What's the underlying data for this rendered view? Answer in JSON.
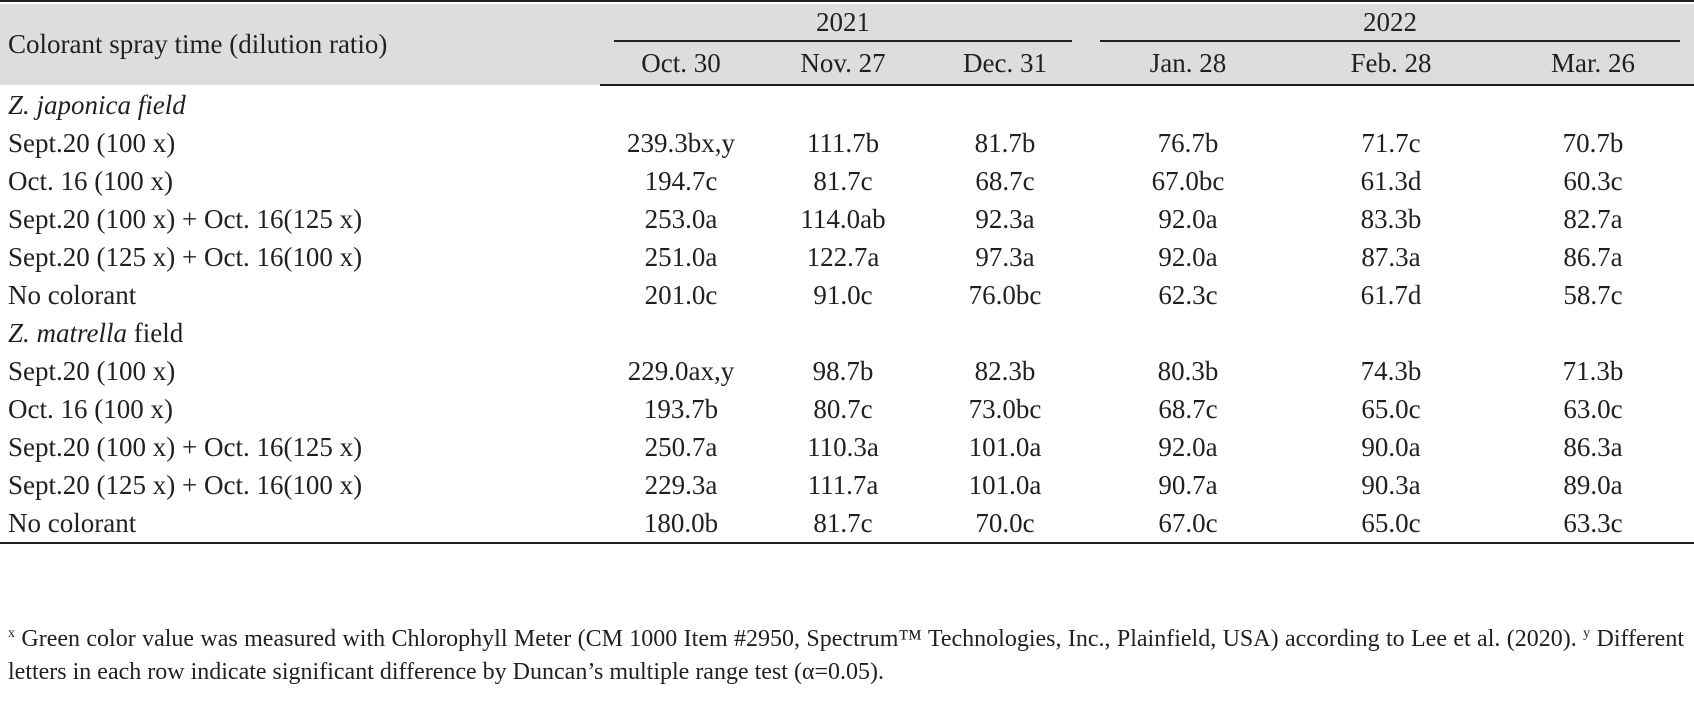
{
  "table": {
    "row_header": "Colorant spray time (dilution ratio)",
    "years": [
      {
        "label": "2021",
        "span": 3
      },
      {
        "label": "2022",
        "span": 3
      }
    ],
    "columns": [
      "Oct. 30",
      "Nov. 27",
      "Dec. 31",
      "Jan. 28",
      "Feb. 28",
      "Mar. 26"
    ],
    "sections": [
      {
        "title_italic": "Z. japonica field",
        "title_rest": "",
        "rows": [
          {
            "label": "Sept.20 (100 x)",
            "values": [
              "239.3bx,y",
              "111.7b",
              "81.7b",
              "76.7b",
              "71.7c",
              "70.7b"
            ]
          },
          {
            "label": "Oct. 16 (100 x)",
            "values": [
              "194.7c",
              "81.7c",
              "68.7c",
              "67.0bc",
              "61.3d",
              "60.3c"
            ]
          },
          {
            "label": "Sept.20 (100 x) + Oct. 16(125 x)",
            "values": [
              "253.0a",
              "114.0ab",
              "92.3a",
              "92.0a",
              "83.3b",
              "82.7a"
            ]
          },
          {
            "label": "Sept.20 (125 x) + Oct. 16(100 x)",
            "values": [
              "251.0a",
              "122.7a",
              "97.3a",
              "92.0a",
              "87.3a",
              "86.7a"
            ]
          },
          {
            "label": "No colorant",
            "values": [
              "201.0c",
              "91.0c",
              "76.0bc",
              "62.3c",
              "61.7d",
              "58.7c"
            ]
          }
        ]
      },
      {
        "title_italic": "Z. matrella",
        "title_rest": " field",
        "rows": [
          {
            "label": "Sept.20 (100 x)",
            "values": [
              "229.0ax,y",
              "98.7b",
              "82.3b",
              "80.3b",
              "74.3b",
              "71.3b"
            ]
          },
          {
            "label": "Oct. 16 (100 x)",
            "values": [
              "193.7b",
              "80.7c",
              "73.0bc",
              "68.7c",
              "65.0c",
              "63.0c"
            ]
          },
          {
            "label": "Sept.20 (100 x) + Oct. 16(125 x)",
            "values": [
              "250.7a",
              "110.3a",
              "101.0a",
              "92.0a",
              "90.0a",
              "86.3a"
            ]
          },
          {
            "label": "Sept.20 (125 x) + Oct. 16(100 x)",
            "values": [
              "229.3a",
              "111.7a",
              "101.0a",
              "90.7a",
              "90.3a",
              "89.0a"
            ]
          },
          {
            "label": "No colorant",
            "values": [
              "180.0b",
              "81.7c",
              "70.0c",
              "67.0c",
              "65.0c",
              "63.3c"
            ]
          }
        ]
      }
    ]
  },
  "footnote": {
    "x_mark": "x",
    "x_text": " Green color value was measured with Chlorophyll Meter (CM 1000 Item #2950, Spectrum™ Technologies, Inc., Plainfield, USA) according to Lee et al. (2020). ",
    "y_mark": "y",
    "y_text": " Different letters in each row indicate significant difference by Duncan’s multiple range test (α=0.05)."
  }
}
